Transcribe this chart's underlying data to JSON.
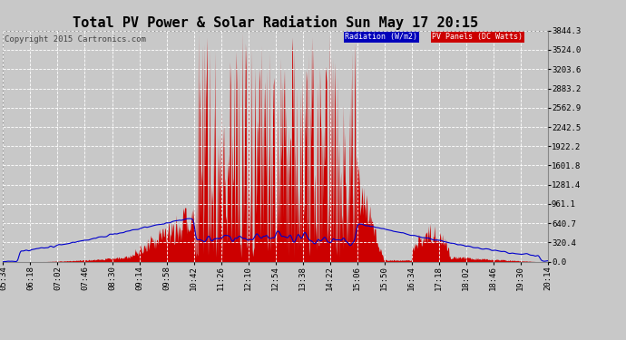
{
  "title": "Total PV Power & Solar Radiation Sun May 17 20:15",
  "copyright_text": "Copyright 2015 Cartronics.com",
  "legend_radiation_label": "Radiation (W/m2)",
  "legend_pv_label": "PV Panels (DC Watts)",
  "legend_radiation_bg": "#0000bb",
  "legend_pv_bg": "#cc0000",
  "legend_text_color": "#ffffff",
  "y_tick_labels": [
    "0.0",
    "320.4",
    "640.7",
    "961.1",
    "1281.4",
    "1601.8",
    "1922.2",
    "2242.5",
    "2562.9",
    "2883.2",
    "3203.6",
    "3524.0",
    "3844.3"
  ],
  "y_max": 3844.3,
  "y_min": 0.0,
  "background_color": "#c8c8c8",
  "plot_bg_color": "#c8c8c8",
  "grid_color": "#ffffff",
  "title_fontsize": 11,
  "axis_fontsize": 6.5,
  "copyright_fontsize": 6.5,
  "x_tick_labels": [
    "05:34",
    "06:18",
    "07:02",
    "07:46",
    "08:30",
    "09:14",
    "09:58",
    "10:42",
    "11:26",
    "12:10",
    "12:54",
    "13:38",
    "14:22",
    "15:06",
    "15:50",
    "16:34",
    "17:18",
    "18:02",
    "18:46",
    "19:30",
    "20:14"
  ]
}
